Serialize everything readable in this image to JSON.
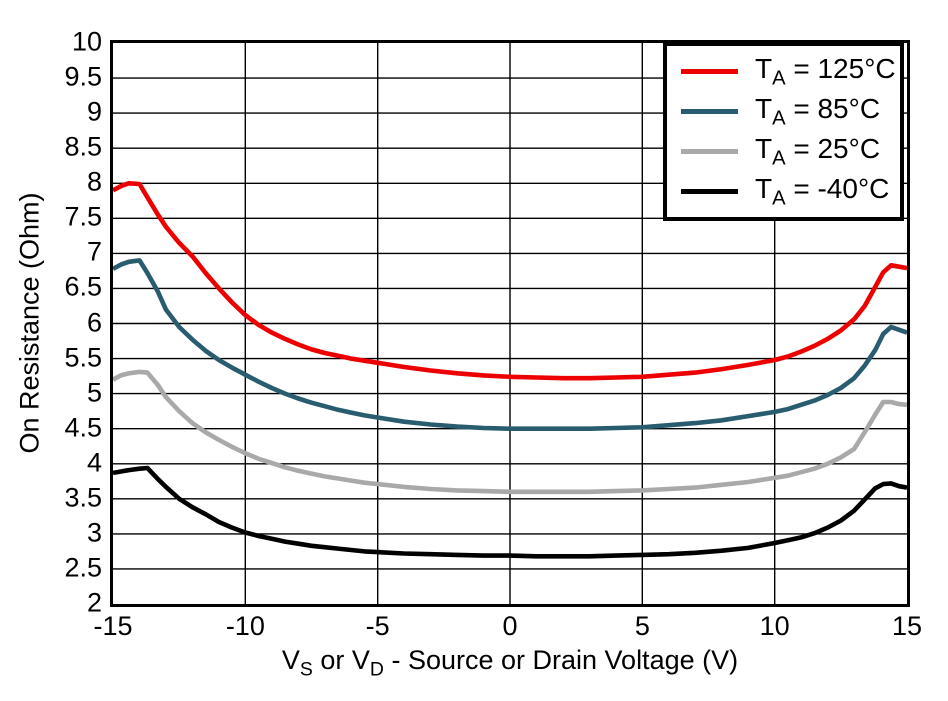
{
  "chart_data": {
    "type": "line",
    "title": "",
    "ylabel": "On Resistance (Ohm)",
    "xlabel_plain": "VS or VD - Source or Drain Voltage (V)",
    "xlabel_segments": [
      {
        "text": "V"
      },
      {
        "sub": "S"
      },
      {
        "text": " or V"
      },
      {
        "sub": "D"
      },
      {
        "text": " - Source or Drain Voltage (V)"
      }
    ],
    "xlim": [
      -15,
      15
    ],
    "ylim": [
      2,
      10
    ],
    "x_tick_values": [
      -15,
      -10,
      -5,
      0,
      5,
      10,
      15
    ],
    "x_tick_labels": [
      "-15",
      "-10",
      "-5",
      "0",
      "5",
      "10",
      "15"
    ],
    "y_tick_values": [
      2,
      2.5,
      3,
      3.5,
      4,
      4.5,
      5,
      5.5,
      6,
      6.5,
      7,
      7.5,
      8,
      8.5,
      9,
      9.5,
      10
    ],
    "y_tick_labels": [
      "2",
      "2.5",
      "3",
      "3.5",
      "4",
      "4.5",
      "5",
      "5.5",
      "6",
      "6.5",
      "7",
      "7.5",
      "8",
      "8.5",
      "9",
      "9.5",
      "10"
    ],
    "x_gridline_values": [
      -10,
      -5,
      0,
      5,
      10
    ],
    "grid": "on",
    "axis_color": "#000000",
    "background": "#ffffff",
    "legend": {
      "position": "top-right",
      "label_base": "T",
      "label_sub": "A",
      "label_sep": " = "
    },
    "series": [
      {
        "id": "ta-125c",
        "label": "TA = 125°C",
        "temp": "125°C",
        "color": "#ec0000",
        "x": [
          -15,
          -14.7,
          -14.4,
          -14,
          -13.7,
          -13.3,
          -13,
          -12.5,
          -12,
          -11.5,
          -11,
          -10.5,
          -10,
          -9.5,
          -9,
          -8.5,
          -8,
          -7.5,
          -7,
          -6.5,
          -6,
          -5.5,
          -5,
          -4,
          -3,
          -2,
          -1,
          0,
          1,
          2,
          3,
          4,
          5,
          6,
          7,
          8,
          9,
          10,
          10.5,
          11,
          11.5,
          12,
          12.5,
          13,
          13.4,
          13.8,
          14.1,
          14.4,
          14.7,
          15
        ],
        "y": [
          7.9,
          7.96,
          8.0,
          7.99,
          7.8,
          7.55,
          7.38,
          7.15,
          6.96,
          6.72,
          6.5,
          6.3,
          6.12,
          5.98,
          5.87,
          5.78,
          5.7,
          5.63,
          5.58,
          5.54,
          5.5,
          5.47,
          5.44,
          5.38,
          5.33,
          5.29,
          5.26,
          5.24,
          5.23,
          5.22,
          5.22,
          5.23,
          5.24,
          5.27,
          5.3,
          5.35,
          5.41,
          5.48,
          5.53,
          5.6,
          5.68,
          5.78,
          5.9,
          6.06,
          6.25,
          6.52,
          6.73,
          6.83,
          6.81,
          6.79
        ]
      },
      {
        "id": "ta-85c",
        "label": "TA = 85°C",
        "temp": "85°C",
        "color": "#2a5c70",
        "x": [
          -15,
          -14.7,
          -14.4,
          -14,
          -13.7,
          -13.3,
          -13,
          -12.5,
          -12,
          -11.5,
          -11,
          -10.5,
          -10,
          -9.5,
          -9,
          -8.5,
          -8,
          -7.5,
          -7,
          -6.5,
          -6,
          -5.5,
          -5,
          -4,
          -3,
          -2,
          -1,
          0,
          1,
          2,
          3,
          4,
          5,
          6,
          7,
          8,
          9,
          10,
          10.5,
          11,
          11.5,
          12,
          12.5,
          13,
          13.4,
          13.8,
          14.1,
          14.4,
          14.7,
          15
        ],
        "y": [
          6.78,
          6.84,
          6.88,
          6.9,
          6.72,
          6.45,
          6.2,
          5.95,
          5.77,
          5.61,
          5.48,
          5.37,
          5.27,
          5.17,
          5.08,
          5.0,
          4.93,
          4.87,
          4.82,
          4.77,
          4.73,
          4.69,
          4.66,
          4.6,
          4.56,
          4.53,
          4.51,
          4.5,
          4.5,
          4.5,
          4.5,
          4.51,
          4.52,
          4.55,
          4.58,
          4.62,
          4.68,
          4.74,
          4.78,
          4.84,
          4.9,
          4.98,
          5.08,
          5.22,
          5.4,
          5.62,
          5.85,
          5.95,
          5.91,
          5.87
        ]
      },
      {
        "id": "ta-25c",
        "label": "TA = 25°C",
        "temp": "25°C",
        "color": "#a9a9a9",
        "x": [
          -15,
          -14.7,
          -14.4,
          -14,
          -13.7,
          -13.3,
          -13,
          -12.5,
          -12,
          -11.5,
          -11,
          -10.5,
          -10,
          -9.5,
          -9,
          -8.5,
          -8,
          -7.5,
          -7,
          -6.5,
          -6,
          -5.5,
          -5,
          -4,
          -3,
          -2,
          -1,
          0,
          1,
          2,
          3,
          4,
          5,
          6,
          7,
          8,
          9,
          10,
          10.5,
          11,
          11.5,
          12,
          12.5,
          13,
          13.4,
          13.8,
          14.1,
          14.4,
          14.7,
          15
        ],
        "y": [
          5.2,
          5.26,
          5.29,
          5.31,
          5.3,
          5.12,
          4.95,
          4.75,
          4.58,
          4.45,
          4.34,
          4.24,
          4.15,
          4.07,
          4.01,
          3.95,
          3.9,
          3.86,
          3.82,
          3.79,
          3.76,
          3.73,
          3.71,
          3.67,
          3.64,
          3.62,
          3.61,
          3.6,
          3.6,
          3.6,
          3.6,
          3.61,
          3.62,
          3.64,
          3.66,
          3.7,
          3.74,
          3.8,
          3.83,
          3.88,
          3.93,
          4.0,
          4.09,
          4.21,
          4.45,
          4.7,
          4.88,
          4.88,
          4.85,
          4.84
        ]
      },
      {
        "id": "ta-minus40c",
        "label": "TA = -40°C",
        "temp": "-40°C",
        "color": "#000000",
        "x": [
          -15,
          -14.7,
          -14.4,
          -14,
          -13.7,
          -13.3,
          -13,
          -12.5,
          -12,
          -11.5,
          -11,
          -10.5,
          -10,
          -9.5,
          -9,
          -8.5,
          -8,
          -7.5,
          -7,
          -6.5,
          -6,
          -5.5,
          -5,
          -4,
          -3,
          -2,
          -1,
          0,
          1,
          2,
          3,
          4,
          5,
          6,
          7,
          8,
          9,
          10,
          10.5,
          11,
          11.5,
          12,
          12.5,
          13,
          13.4,
          13.8,
          14.1,
          14.4,
          14.7,
          15
        ],
        "y": [
          3.87,
          3.89,
          3.91,
          3.93,
          3.94,
          3.78,
          3.67,
          3.5,
          3.38,
          3.28,
          3.17,
          3.09,
          3.02,
          2.97,
          2.93,
          2.89,
          2.86,
          2.83,
          2.81,
          2.79,
          2.77,
          2.75,
          2.74,
          2.72,
          2.71,
          2.7,
          2.69,
          2.69,
          2.68,
          2.68,
          2.68,
          2.69,
          2.7,
          2.71,
          2.73,
          2.76,
          2.8,
          2.87,
          2.91,
          2.95,
          3.01,
          3.09,
          3.19,
          3.33,
          3.49,
          3.65,
          3.71,
          3.72,
          3.68,
          3.66
        ]
      }
    ]
  }
}
